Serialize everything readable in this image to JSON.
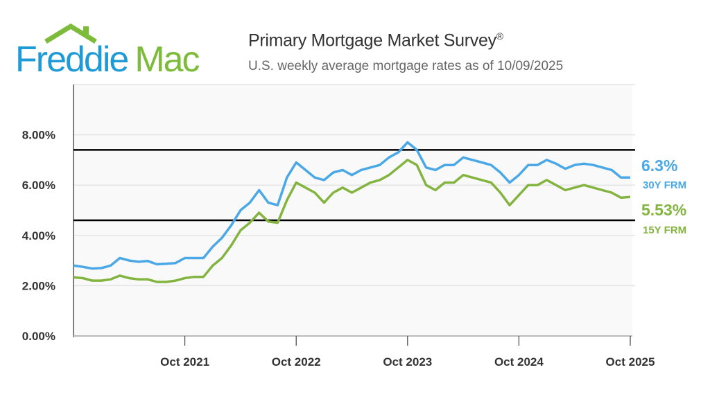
{
  "header": {
    "logo": "Freddie Mac",
    "logo_part1": "Freddie",
    "logo_part2": "Mac",
    "title": "Primary Mortgage Market Survey",
    "title_mark": "®",
    "subtitle": "U.S. weekly average mortgage rates as of 10/09/2025"
  },
  "colors": {
    "blue": "#4aa8e6",
    "green": "#84b440",
    "logo_blue": "#1e9ad6",
    "logo_green": "#7dbb3a"
  },
  "chart_data": {
    "type": "line",
    "title": "Primary Mortgage Market Survey",
    "xlabel": "",
    "ylabel": "",
    "ylim": [
      0,
      10
    ],
    "xlim": [
      "2020-10",
      "2025-10"
    ],
    "grid": true,
    "y_ticks": [
      "0.00%",
      "2.00%",
      "4.00%",
      "6.00%",
      "8.00%"
    ],
    "y_tick_values": [
      0,
      2,
      4,
      6,
      8
    ],
    "x_ticks": [
      "Oct 2021",
      "Oct 2022",
      "Oct 2023",
      "Oct 2024",
      "Oct 2025"
    ],
    "x_tick_values": [
      "2021-10",
      "2022-10",
      "2023-10",
      "2024-10",
      "2025-10"
    ],
    "reference_lines": [
      7.4,
      4.6
    ],
    "x": [
      "2020-10",
      "2020-11",
      "2020-12",
      "2021-01",
      "2021-02",
      "2021-03",
      "2021-04",
      "2021-05",
      "2021-06",
      "2021-07",
      "2021-08",
      "2021-09",
      "2021-10",
      "2021-11",
      "2021-12",
      "2022-01",
      "2022-02",
      "2022-03",
      "2022-04",
      "2022-05",
      "2022-06",
      "2022-07",
      "2022-08",
      "2022-09",
      "2022-10",
      "2022-11",
      "2022-12",
      "2023-01",
      "2023-02",
      "2023-03",
      "2023-04",
      "2023-05",
      "2023-06",
      "2023-07",
      "2023-08",
      "2023-09",
      "2023-10",
      "2023-11",
      "2023-12",
      "2024-01",
      "2024-02",
      "2024-03",
      "2024-04",
      "2024-05",
      "2024-06",
      "2024-07",
      "2024-08",
      "2024-09",
      "2024-10",
      "2024-11",
      "2024-12",
      "2025-01",
      "2025-02",
      "2025-03",
      "2025-04",
      "2025-05",
      "2025-06",
      "2025-07",
      "2025-08",
      "2025-09",
      "2025-10"
    ],
    "series": [
      {
        "name": "30Y FRM",
        "latest_label": "6.3%",
        "color": "#4aa8e6",
        "values": [
          2.8,
          2.75,
          2.68,
          2.7,
          2.8,
          3.1,
          3.0,
          2.95,
          2.98,
          2.85,
          2.87,
          2.9,
          3.1,
          3.1,
          3.1,
          3.55,
          3.9,
          4.4,
          5.0,
          5.3,
          5.8,
          5.3,
          5.2,
          6.3,
          6.9,
          6.6,
          6.3,
          6.2,
          6.5,
          6.6,
          6.4,
          6.6,
          6.7,
          6.8,
          7.1,
          7.3,
          7.7,
          7.4,
          6.7,
          6.6,
          6.8,
          6.8,
          7.1,
          7.0,
          6.9,
          6.8,
          6.5,
          6.1,
          6.4,
          6.8,
          6.8,
          7.0,
          6.85,
          6.65,
          6.8,
          6.85,
          6.8,
          6.7,
          6.6,
          6.3,
          6.3
        ]
      },
      {
        "name": "15Y FRM",
        "latest_label": "5.53%",
        "color": "#84b440",
        "values": [
          2.33,
          2.3,
          2.2,
          2.2,
          2.25,
          2.4,
          2.3,
          2.25,
          2.25,
          2.15,
          2.15,
          2.2,
          2.3,
          2.35,
          2.35,
          2.8,
          3.1,
          3.6,
          4.2,
          4.5,
          4.9,
          4.55,
          4.5,
          5.4,
          6.1,
          5.9,
          5.7,
          5.3,
          5.7,
          5.9,
          5.7,
          5.9,
          6.1,
          6.2,
          6.4,
          6.7,
          7.0,
          6.8,
          6.0,
          5.8,
          6.1,
          6.1,
          6.4,
          6.3,
          6.2,
          6.1,
          5.7,
          5.2,
          5.6,
          6.0,
          6.0,
          6.2,
          6.0,
          5.8,
          5.9,
          6.0,
          5.9,
          5.8,
          5.7,
          5.5,
          5.53
        ]
      }
    ]
  }
}
